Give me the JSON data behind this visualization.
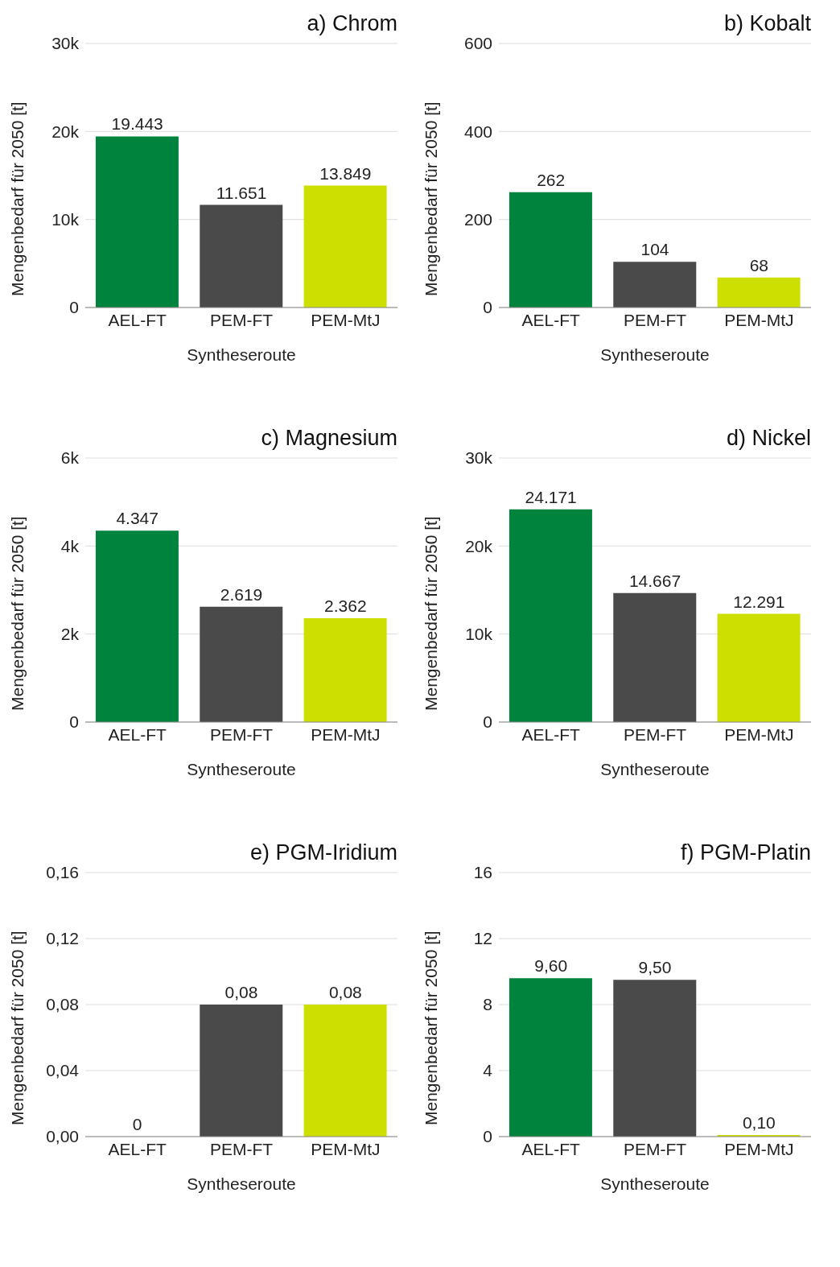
{
  "chart_data": [
    {
      "type": "bar",
      "title": "a) Chrom",
      "xlabel": "Syntheseroute",
      "ylabel": "Mengenbedarf für 2050 [t]",
      "categories": [
        "AEL-FT",
        "PEM-FT",
        "PEM-MtJ"
      ],
      "values": [
        19443,
        11651,
        13849
      ],
      "value_labels": [
        "19.443",
        "11.651",
        "13.849"
      ],
      "colors": [
        "#00843d",
        "#4a4a4a",
        "#cddf00"
      ],
      "ylim": [
        0,
        30000
      ],
      "yticks": [
        0,
        {
          "value": 10000,
          "label": "10k"
        },
        {
          "value": 20000,
          "label": "20k"
        },
        {
          "value": 30000,
          "label": "30k"
        }
      ],
      "grid": "y"
    },
    {
      "type": "bar",
      "title": "b) Kobalt",
      "xlabel": "Syntheseroute",
      "ylabel": "Mengenbedarf für 2050 [t]",
      "categories": [
        "AEL-FT",
        "PEM-FT",
        "PEM-MtJ"
      ],
      "values": [
        262,
        104,
        68
      ],
      "value_labels": [
        "262",
        "104",
        "68"
      ],
      "colors": [
        "#00843d",
        "#4a4a4a",
        "#cddf00"
      ],
      "ylim": [
        0,
        600
      ],
      "yticks": [
        0,
        200,
        400,
        600
      ],
      "grid": "y"
    },
    {
      "type": "bar",
      "title": "c) Magnesium",
      "xlabel": "Syntheseroute",
      "ylabel": "Mengenbedarf für 2050 [t]",
      "categories": [
        "AEL-FT",
        "PEM-FT",
        "PEM-MtJ"
      ],
      "values": [
        4347,
        2619,
        2362
      ],
      "value_labels": [
        "4.347",
        "2.619",
        "2.362"
      ],
      "colors": [
        "#00843d",
        "#4a4a4a",
        "#cddf00"
      ],
      "ylim": [
        0,
        6000
      ],
      "yticks": [
        0,
        {
          "value": 2000,
          "label": "2k"
        },
        {
          "value": 4000,
          "label": "4k"
        },
        {
          "value": 6000,
          "label": "6k"
        }
      ],
      "grid": "y"
    },
    {
      "type": "bar",
      "title": "d) Nickel",
      "xlabel": "Syntheseroute",
      "ylabel": "Mengenbedarf für 2050 [t]",
      "categories": [
        "AEL-FT",
        "PEM-FT",
        "PEM-MtJ"
      ],
      "values": [
        24171,
        14667,
        12291
      ],
      "value_labels": [
        "24.171",
        "14.667",
        "12.291"
      ],
      "colors": [
        "#00843d",
        "#4a4a4a",
        "#cddf00"
      ],
      "ylim": [
        0,
        30000
      ],
      "yticks": [
        0,
        {
          "value": 10000,
          "label": "10k"
        },
        {
          "value": 20000,
          "label": "20k"
        },
        {
          "value": 30000,
          "label": "30k"
        }
      ],
      "grid": "y"
    },
    {
      "type": "bar",
      "title": "e) PGM-Iridium",
      "xlabel": "Syntheseroute",
      "ylabel": "Mengenbedarf für 2050 [t]",
      "categories": [
        "AEL-FT",
        "PEM-FT",
        "PEM-MtJ"
      ],
      "values": [
        0,
        0.08,
        0.08
      ],
      "value_labels": [
        "0",
        "0,08",
        "0,08"
      ],
      "colors": [
        "#00843d",
        "#4a4a4a",
        "#cddf00"
      ],
      "ylim": [
        0,
        0.16
      ],
      "yticks": [
        {
          "value": 0,
          "label": "0,00"
        },
        {
          "value": 0.04,
          "label": "0,04"
        },
        {
          "value": 0.08,
          "label": "0,08"
        },
        {
          "value": 0.12,
          "label": "0,12"
        },
        {
          "value": 0.16,
          "label": "0,16"
        }
      ],
      "grid": "y"
    },
    {
      "type": "bar",
      "title": "f) PGM-Platin",
      "xlabel": "Syntheseroute",
      "ylabel": "Mengenbedarf für 2050 [t]",
      "categories": [
        "AEL-FT",
        "PEM-FT",
        "PEM-MtJ"
      ],
      "values": [
        9.6,
        9.5,
        0.1
      ],
      "value_labels": [
        "9,60",
        "9,50",
        "0,10"
      ],
      "colors": [
        "#00843d",
        "#4a4a4a",
        "#cddf00"
      ],
      "ylim": [
        0,
        16
      ],
      "yticks": [
        0,
        4,
        8,
        12,
        16
      ],
      "grid": "y"
    }
  ]
}
